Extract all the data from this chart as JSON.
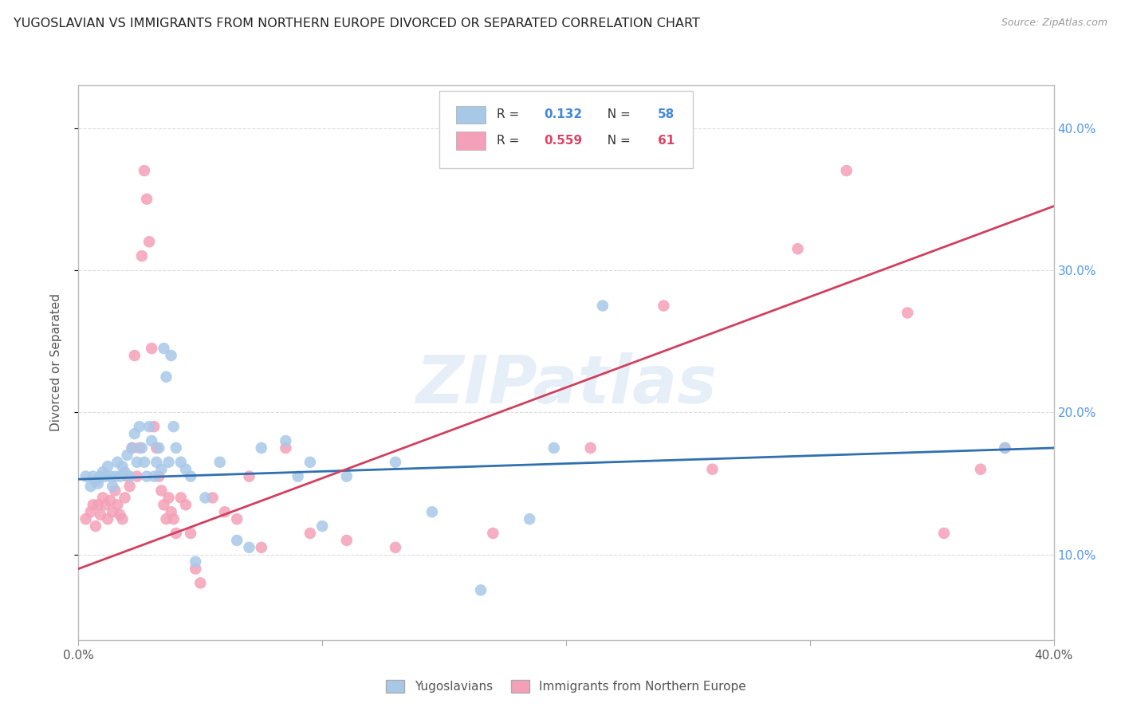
{
  "title": "YUGOSLAVIAN VS IMMIGRANTS FROM NORTHERN EUROPE DIVORCED OR SEPARATED CORRELATION CHART",
  "source": "Source: ZipAtlas.com",
  "ylabel": "Divorced or Separated",
  "R_blue": 0.132,
  "N_blue": 58,
  "R_pink": 0.559,
  "N_pink": 61,
  "legend_label_blue": "Yugoslavians",
  "legend_label_pink": "Immigrants from Northern Europe",
  "blue_color": "#a8c8e8",
  "pink_color": "#f4a0b8",
  "blue_line_color": "#3070b0",
  "pink_line_color": "#d04060",
  "watermark": "ZIPatlas",
  "xlim": [
    0.0,
    0.4
  ],
  "ylim": [
    0.04,
    0.43
  ],
  "background_color": "#ffffff",
  "grid_color": "#dddddd",
  "blue_points": [
    [
      0.003,
      0.155
    ],
    [
      0.005,
      0.148
    ],
    [
      0.006,
      0.155
    ],
    [
      0.007,
      0.152
    ],
    [
      0.008,
      0.15
    ],
    [
      0.009,
      0.155
    ],
    [
      0.01,
      0.158
    ],
    [
      0.011,
      0.155
    ],
    [
      0.012,
      0.162
    ],
    [
      0.013,
      0.155
    ],
    [
      0.014,
      0.148
    ],
    [
      0.015,
      0.155
    ],
    [
      0.016,
      0.165
    ],
    [
      0.017,
      0.155
    ],
    [
      0.018,
      0.162
    ],
    [
      0.019,
      0.158
    ],
    [
      0.02,
      0.17
    ],
    [
      0.021,
      0.155
    ],
    [
      0.022,
      0.175
    ],
    [
      0.023,
      0.185
    ],
    [
      0.024,
      0.165
    ],
    [
      0.025,
      0.19
    ],
    [
      0.026,
      0.175
    ],
    [
      0.027,
      0.165
    ],
    [
      0.028,
      0.155
    ],
    [
      0.029,
      0.19
    ],
    [
      0.03,
      0.18
    ],
    [
      0.031,
      0.155
    ],
    [
      0.032,
      0.165
    ],
    [
      0.033,
      0.175
    ],
    [
      0.034,
      0.16
    ],
    [
      0.035,
      0.245
    ],
    [
      0.036,
      0.225
    ],
    [
      0.037,
      0.165
    ],
    [
      0.038,
      0.24
    ],
    [
      0.039,
      0.19
    ],
    [
      0.04,
      0.175
    ],
    [
      0.042,
      0.165
    ],
    [
      0.044,
      0.16
    ],
    [
      0.046,
      0.155
    ],
    [
      0.048,
      0.095
    ],
    [
      0.052,
      0.14
    ],
    [
      0.058,
      0.165
    ],
    [
      0.065,
      0.11
    ],
    [
      0.07,
      0.105
    ],
    [
      0.075,
      0.175
    ],
    [
      0.085,
      0.18
    ],
    [
      0.09,
      0.155
    ],
    [
      0.095,
      0.165
    ],
    [
      0.1,
      0.12
    ],
    [
      0.11,
      0.155
    ],
    [
      0.13,
      0.165
    ],
    [
      0.145,
      0.13
    ],
    [
      0.165,
      0.075
    ],
    [
      0.185,
      0.125
    ],
    [
      0.195,
      0.175
    ],
    [
      0.215,
      0.275
    ],
    [
      0.38,
      0.175
    ]
  ],
  "pink_points": [
    [
      0.003,
      0.125
    ],
    [
      0.005,
      0.13
    ],
    [
      0.006,
      0.135
    ],
    [
      0.007,
      0.12
    ],
    [
      0.008,
      0.135
    ],
    [
      0.009,
      0.128
    ],
    [
      0.01,
      0.14
    ],
    [
      0.011,
      0.135
    ],
    [
      0.012,
      0.125
    ],
    [
      0.013,
      0.138
    ],
    [
      0.014,
      0.13
    ],
    [
      0.015,
      0.145
    ],
    [
      0.016,
      0.135
    ],
    [
      0.017,
      0.128
    ],
    [
      0.018,
      0.125
    ],
    [
      0.019,
      0.14
    ],
    [
      0.02,
      0.155
    ],
    [
      0.021,
      0.148
    ],
    [
      0.022,
      0.175
    ],
    [
      0.023,
      0.24
    ],
    [
      0.024,
      0.155
    ],
    [
      0.025,
      0.175
    ],
    [
      0.026,
      0.31
    ],
    [
      0.027,
      0.37
    ],
    [
      0.028,
      0.35
    ],
    [
      0.029,
      0.32
    ],
    [
      0.03,
      0.245
    ],
    [
      0.031,
      0.19
    ],
    [
      0.032,
      0.175
    ],
    [
      0.033,
      0.155
    ],
    [
      0.034,
      0.145
    ],
    [
      0.035,
      0.135
    ],
    [
      0.036,
      0.125
    ],
    [
      0.037,
      0.14
    ],
    [
      0.038,
      0.13
    ],
    [
      0.039,
      0.125
    ],
    [
      0.04,
      0.115
    ],
    [
      0.042,
      0.14
    ],
    [
      0.044,
      0.135
    ],
    [
      0.046,
      0.115
    ],
    [
      0.048,
      0.09
    ],
    [
      0.05,
      0.08
    ],
    [
      0.055,
      0.14
    ],
    [
      0.06,
      0.13
    ],
    [
      0.065,
      0.125
    ],
    [
      0.07,
      0.155
    ],
    [
      0.075,
      0.105
    ],
    [
      0.085,
      0.175
    ],
    [
      0.095,
      0.115
    ],
    [
      0.11,
      0.11
    ],
    [
      0.13,
      0.105
    ],
    [
      0.17,
      0.115
    ],
    [
      0.21,
      0.175
    ],
    [
      0.24,
      0.275
    ],
    [
      0.26,
      0.16
    ],
    [
      0.295,
      0.315
    ],
    [
      0.315,
      0.37
    ],
    [
      0.34,
      0.27
    ],
    [
      0.355,
      0.115
    ],
    [
      0.37,
      0.16
    ],
    [
      0.38,
      0.175
    ]
  ]
}
